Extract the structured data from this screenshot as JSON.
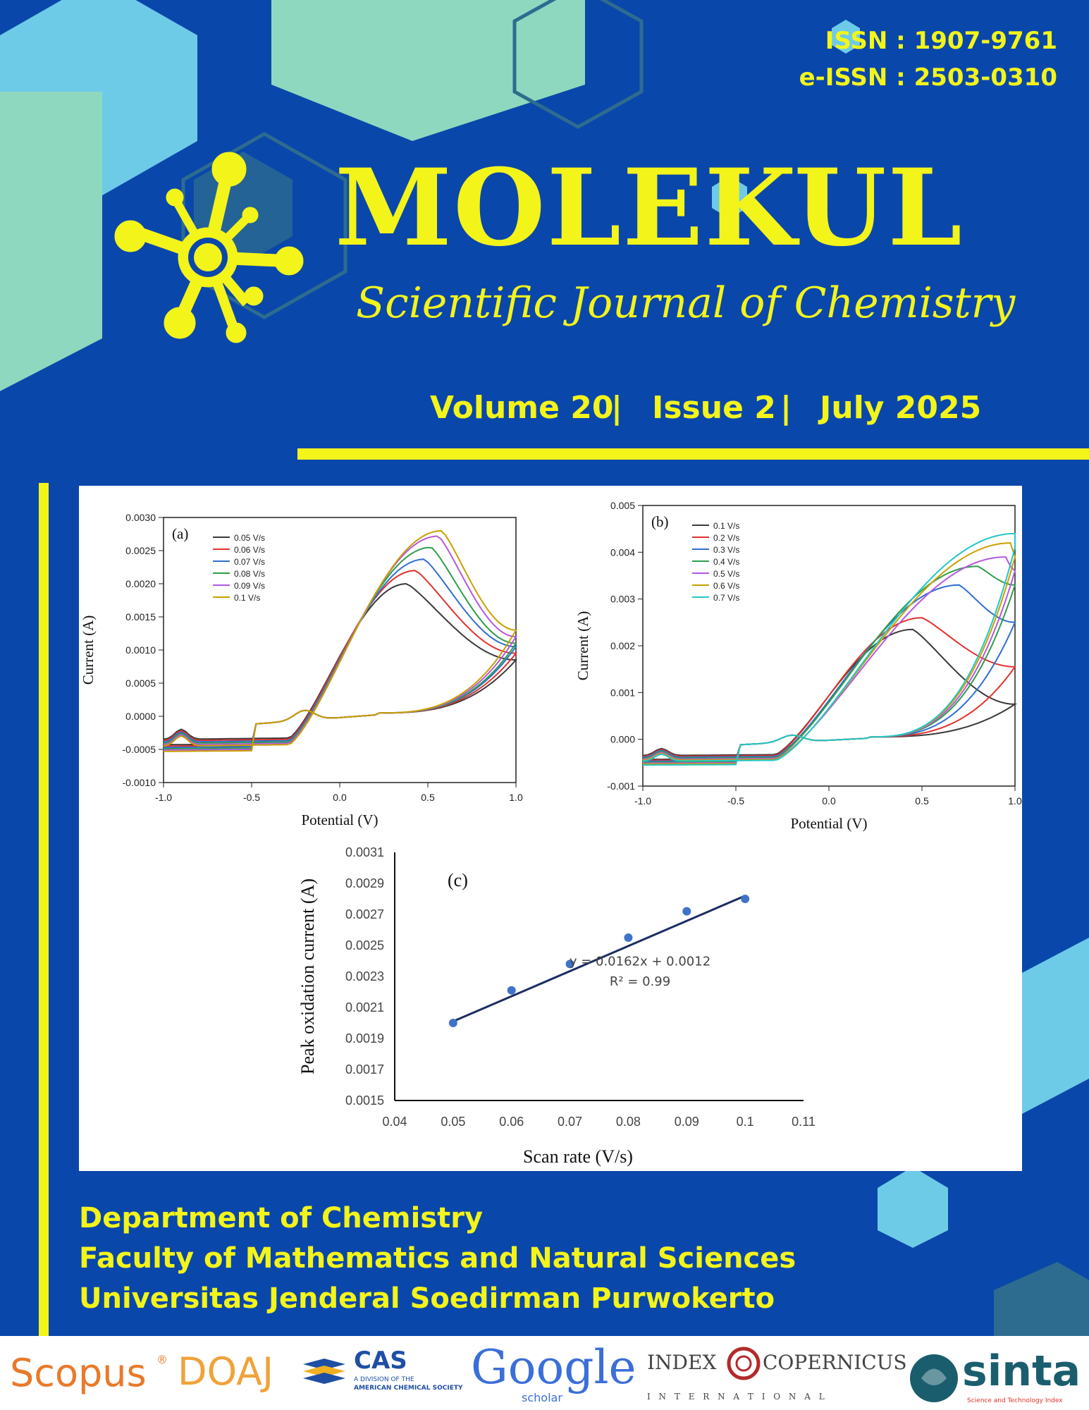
{
  "journal": {
    "issn": "ISSN : 1907-9761",
    "eissn": "e-ISSN : 2503-0310",
    "title": "MOLEKUL",
    "subtitle": "Scientific Journal of Chemistry",
    "volume": "Volume 20",
    "issue": "Issue 2",
    "date": "July 2025",
    "separator": "|"
  },
  "colors": {
    "background": "#0a47ab",
    "accent_yellow": "#f3f41a",
    "hex_mint": "#8ed8bf",
    "hex_light_blue": "#6dcbe8",
    "hex_dark": "#2d6c8f"
  },
  "affiliation": {
    "line1": "Department of Chemistry",
    "line2": "Faculty of Mathematics and Natural Sciences",
    "line3": "Universitas Jenderal Soedirman Purwokerto"
  },
  "logos": {
    "scopus": "Scopus",
    "scopus_mark": "®",
    "doaj": "DOAJ",
    "cas": "CAS",
    "cas_sub1": "A DIVISION OF THE",
    "cas_sub2": "AMERICAN CHEMICAL SOCIETY",
    "google": "Google",
    "google_sub": "scholar",
    "index": "INDEX",
    "copernicus": "COPERNICUS",
    "international": "I N T E R N A T I O N A L",
    "sinta": "sinta",
    "sinta_sub": "Science and Technology Index"
  },
  "chart_data": [
    {
      "type": "line",
      "panel": "(a)",
      "xlabel": "Potential (V)",
      "ylabel": "Current (A)",
      "xlim": [
        -1.0,
        1.0
      ],
      "ylim": [
        -0.001,
        0.003
      ],
      "xticks": [
        "-1.0",
        "-0.5",
        "0.0",
        "0.5",
        "1.0"
      ],
      "yticks": [
        "-0.0010",
        "-0.0005",
        "0.0000",
        "0.0005",
        "0.0010",
        "0.0015",
        "0.0020",
        "0.0025",
        "0.0030"
      ],
      "series": [
        {
          "name": "0.05 V/s",
          "color": "#3a3a3a",
          "peak_x": 0.38,
          "peak_y": 0.002,
          "end_y": 0.00085
        },
        {
          "name": "0.06 V/s",
          "color": "#e0322d",
          "peak_x": 0.43,
          "peak_y": 0.0022,
          "end_y": 0.00095
        },
        {
          "name": "0.07 V/s",
          "color": "#2f6fd0",
          "peak_x": 0.48,
          "peak_y": 0.00237,
          "end_y": 0.00105
        },
        {
          "name": "0.08 V/s",
          "color": "#2e9e4a",
          "peak_x": 0.52,
          "peak_y": 0.00255,
          "end_y": 0.0011
        },
        {
          "name": "0.09 V/s",
          "color": "#b558e0",
          "peak_x": 0.56,
          "peak_y": 0.00272,
          "end_y": 0.0012
        },
        {
          "name": "0.1 V/s",
          "color": "#c9a000",
          "peak_x": 0.58,
          "peak_y": 0.0028,
          "end_y": 0.0013
        }
      ]
    },
    {
      "type": "line",
      "panel": "(b)",
      "xlabel": "Potential (V)",
      "ylabel": "Current (A)",
      "xlim": [
        -1.0,
        1.0
      ],
      "ylim": [
        -0.001,
        0.005
      ],
      "xticks": [
        "-1.0",
        "-0.5",
        "0.0",
        "0.5",
        "1.0"
      ],
      "yticks": [
        "-0.001",
        "0.000",
        "0.001",
        "0.002",
        "0.003",
        "0.004",
        "0.005"
      ],
      "series": [
        {
          "name": "0.1 V/s",
          "color": "#3a3a3a",
          "peak_x": 0.45,
          "peak_y": 0.00235,
          "end_y": 0.00075
        },
        {
          "name": "0.2 V/s",
          "color": "#e0322d",
          "peak_x": 0.5,
          "peak_y": 0.0026,
          "end_y": 0.00155
        },
        {
          "name": "0.3 V/s",
          "color": "#2f6fd0",
          "peak_x": 0.7,
          "peak_y": 0.0033,
          "end_y": 0.0025
        },
        {
          "name": "0.4 V/s",
          "color": "#2e9e4a",
          "peak_x": 0.8,
          "peak_y": 0.0037,
          "end_y": 0.0033
        },
        {
          "name": "0.5 V/s",
          "color": "#b558e0",
          "peak_x": 0.95,
          "peak_y": 0.0039,
          "end_y": 0.0036
        },
        {
          "name": "0.6 V/s",
          "color": "#c9a000",
          "peak_x": 0.98,
          "peak_y": 0.0042,
          "end_y": 0.0039
        },
        {
          "name": "0.7 V/s",
          "color": "#23c6c8",
          "peak_x": 1.0,
          "peak_y": 0.0044,
          "end_y": 0.0041
        }
      ]
    },
    {
      "type": "scatter",
      "panel": "(c)",
      "xlabel": "Scan rate (V/s)",
      "ylabel": "Peak oxidation current (A)",
      "xlim": [
        0.04,
        0.11
      ],
      "ylim": [
        0.0015,
        0.0031
      ],
      "xticks": [
        "0.04",
        "0.05",
        "0.06",
        "0.07",
        "0.08",
        "0.09",
        "0.1",
        "0.11"
      ],
      "yticks": [
        "0.0015",
        "0.0017",
        "0.0019",
        "0.0021",
        "0.0023",
        "0.0025",
        "0.0027",
        "0.0029",
        "0.0031"
      ],
      "x": [
        0.05,
        0.06,
        0.07,
        0.08,
        0.09,
        0.1
      ],
      "y": [
        0.002,
        0.00221,
        0.00238,
        0.00255,
        0.00272,
        0.0028
      ],
      "fit": {
        "slope": 0.0162,
        "intercept": 0.0012
      },
      "equation": "y = 0.0162x + 0.0012",
      "r2": "R² = 0.99"
    }
  ]
}
